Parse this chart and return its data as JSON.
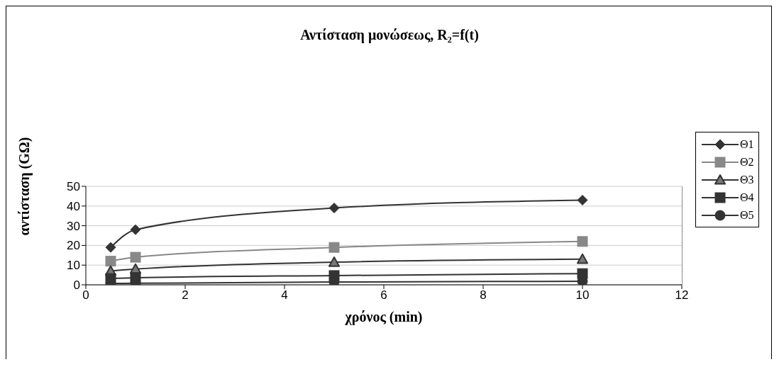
{
  "chart_data": {
    "type": "line",
    "title": "Αντίσταση μονώσεως, R₂=f(t)",
    "xlabel": "χρόνος (min)",
    "ylabel": "αντίσταση (GΩ)",
    "x": [
      0.5,
      1,
      5,
      10
    ],
    "series": [
      {
        "name": "Θ1",
        "color": "#333333",
        "marker": "diamond",
        "values": [
          19,
          28,
          39,
          43
        ]
      },
      {
        "name": "Θ2",
        "color": "#888888",
        "marker": "square",
        "values": [
          12,
          14,
          19,
          22
        ]
      },
      {
        "name": "Θ3",
        "color": "#333333",
        "marker": "triangle",
        "values": [
          7,
          8,
          11.5,
          13
        ]
      },
      {
        "name": "Θ4",
        "color": "#333333",
        "marker": "square",
        "values": [
          3.2,
          3.6,
          4.7,
          5.7
        ]
      },
      {
        "name": "Θ5",
        "color": "#333333",
        "marker": "circle",
        "values": [
          0.7,
          0.8,
          1.4,
          1.8
        ]
      }
    ],
    "xlim": [
      0,
      12
    ],
    "xticks": [
      0,
      2,
      4,
      6,
      8,
      10,
      12
    ],
    "ylim": [
      0,
      50
    ],
    "yticks": [
      0,
      10,
      20,
      30,
      40,
      50
    ],
    "grid": "y",
    "legend": "right"
  }
}
